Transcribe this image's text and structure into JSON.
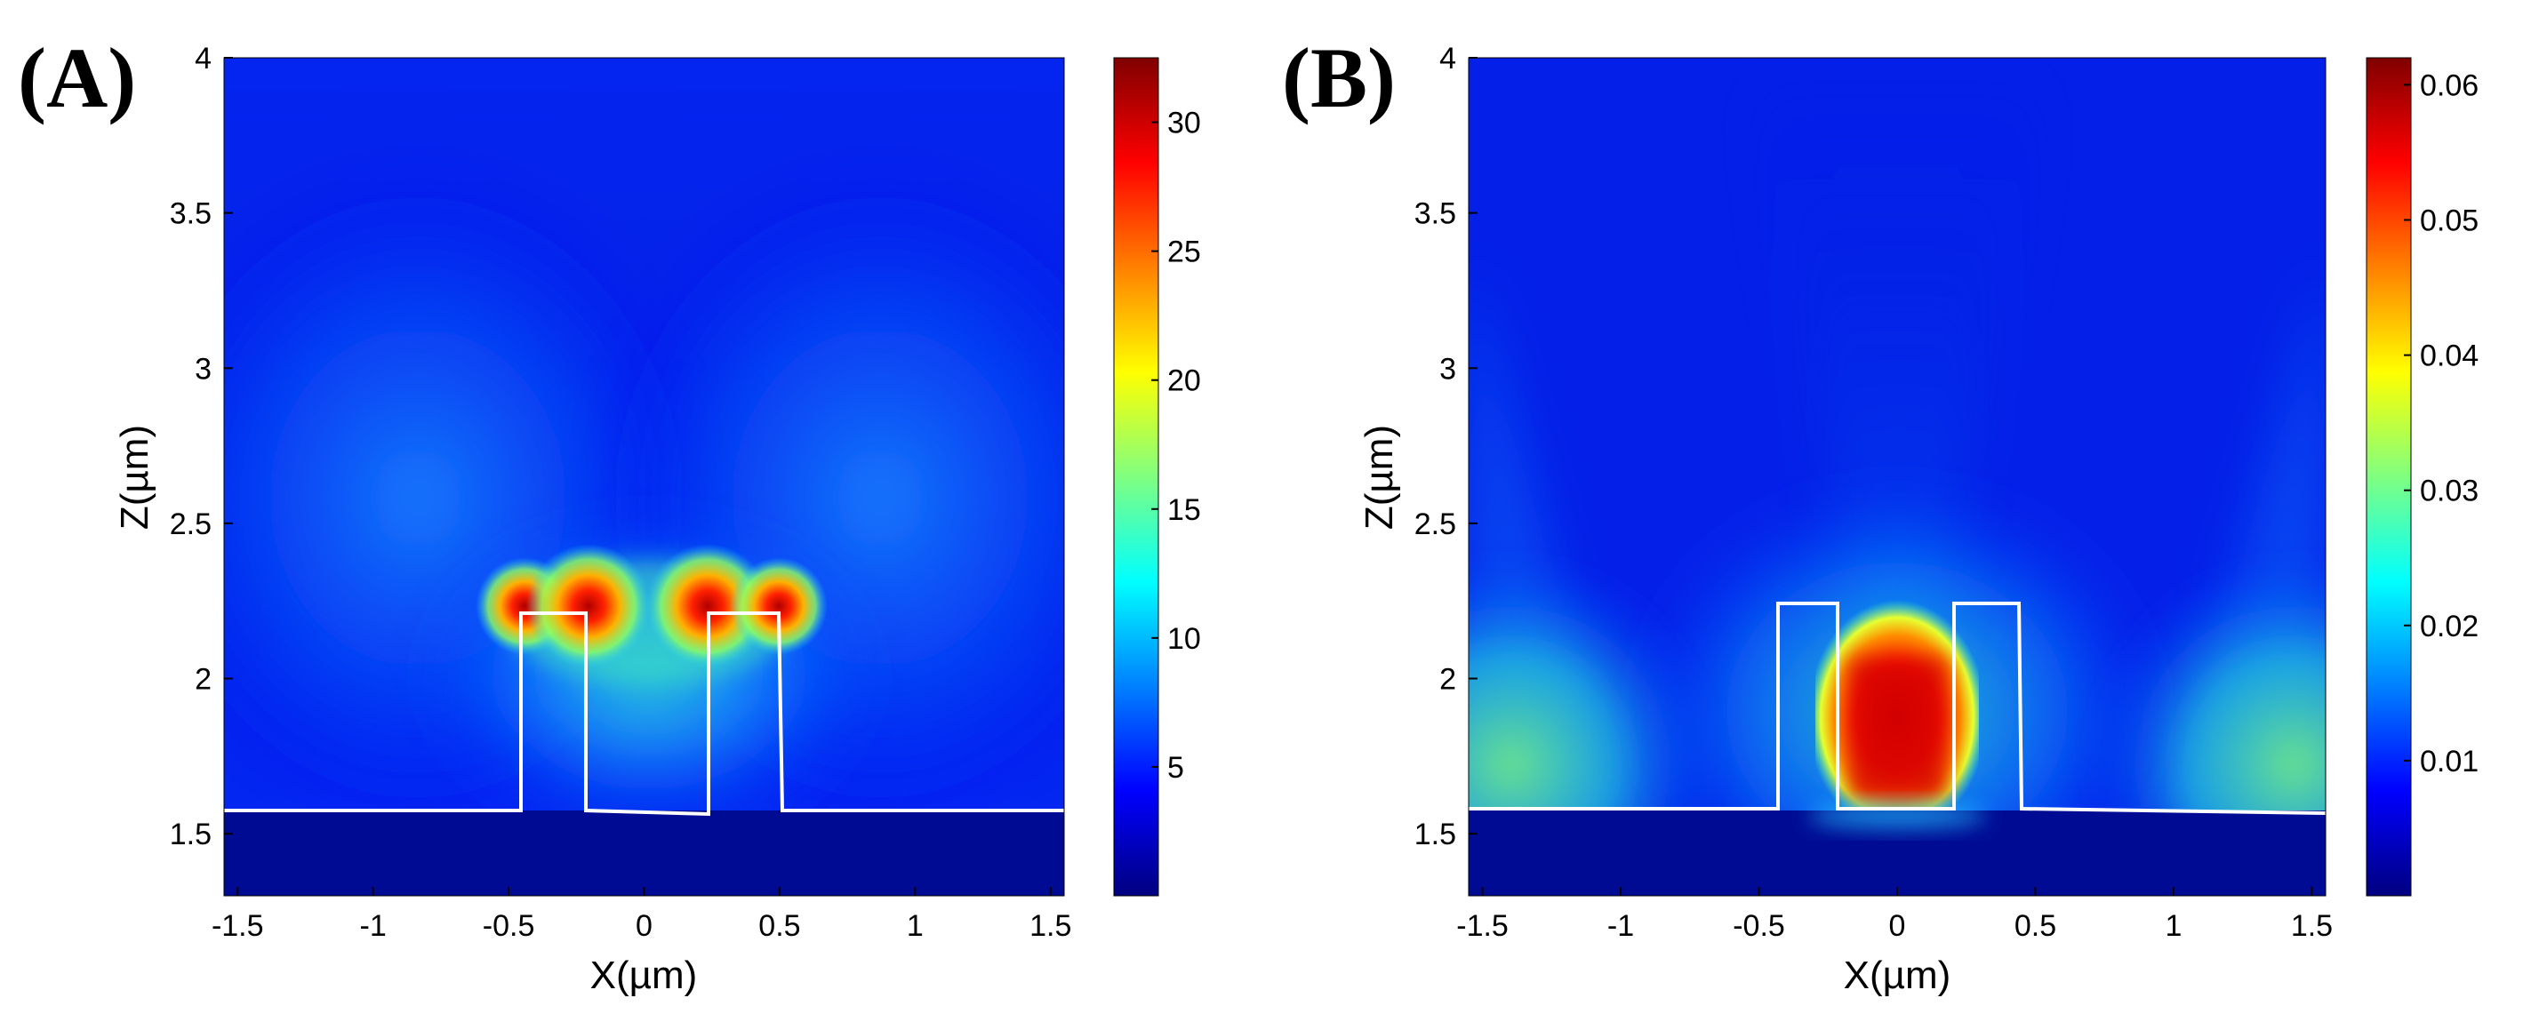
{
  "chart_data": [
    {
      "type": "heatmap",
      "panel_label": "(A)",
      "xlabel": "X(µm)",
      "ylabel": "Z(µm)",
      "xlim": [
        -1.55,
        1.55
      ],
      "ylim": [
        1.3,
        4.0
      ],
      "x_ticks": [
        -1.5,
        -1,
        -0.5,
        0,
        0.5,
        1,
        1.5
      ],
      "x_tick_labels": [
        "-1.5",
        "-1",
        "-0.5",
        "0",
        "0.5",
        "1",
        "1.5"
      ],
      "y_ticks": [
        1.5,
        2,
        2.5,
        3,
        3.5,
        4
      ],
      "y_tick_labels": [
        "1.5",
        "2",
        "2.5",
        "3",
        "3.5",
        "4"
      ],
      "colorbar": {
        "range": [
          0,
          32.5
        ],
        "ticks": [
          5,
          10,
          15,
          20,
          25,
          30
        ],
        "tick_labels": [
          "5",
          "10",
          "15",
          "20",
          "25",
          "30"
        ],
        "colors": [
          "#000080",
          "#0000ff",
          "#0080ff",
          "#00ffff",
          "#80ff80",
          "#ffff00",
          "#ff8000",
          "#ff0000",
          "#800000"
        ]
      },
      "substrate_top": 1.585,
      "structures": [
        {
          "x0": -0.46,
          "x1": -0.22,
          "top": 2.23
        },
        {
          "x0": 0.22,
          "x1": 0.48,
          "top": 2.23
        }
      ],
      "field_pattern": "hotspots at top corners of two ridges, field up to ~30, background ~5"
    },
    {
      "type": "heatmap",
      "panel_label": "(B)",
      "xlabel": "X(µm)",
      "ylabel": "Z(µm)",
      "xlim": [
        -1.55,
        1.55
      ],
      "ylim": [
        1.3,
        4.0
      ],
      "x_ticks": [
        -1.5,
        -1,
        -0.5,
        0,
        0.5,
        1,
        1.5
      ],
      "x_tick_labels": [
        "-1.5",
        "-1",
        "-0.5",
        "0",
        "0.5",
        "1",
        "1.5"
      ],
      "y_ticks": [
        1.5,
        2,
        2.5,
        3,
        3.5,
        4
      ],
      "y_tick_labels": [
        "1.5",
        "2",
        "2.5",
        "3",
        "3.5",
        "4"
      ],
      "colorbar": {
        "range": [
          0,
          0.062
        ],
        "ticks": [
          0.01,
          0.02,
          0.03,
          0.04,
          0.05,
          0.06
        ],
        "tick_labels": [
          "0.01",
          "0.02",
          "0.03",
          "0.04",
          "0.05",
          "0.06"
        ],
        "colors": [
          "#000080",
          "#0000ff",
          "#0080ff",
          "#00ffff",
          "#80ff80",
          "#ffff00",
          "#ff8000",
          "#ff0000",
          "#800000"
        ]
      },
      "substrate_top": 1.6,
      "structures": [
        {
          "x0": -0.43,
          "x1": -0.22,
          "top": 2.255
        },
        {
          "x0": 0.21,
          "x1": 0.44,
          "top": 2.255
        }
      ],
      "field_pattern": "strong confined field (~0.055) in gap between ridges, side lobes ~0.03"
    }
  ]
}
